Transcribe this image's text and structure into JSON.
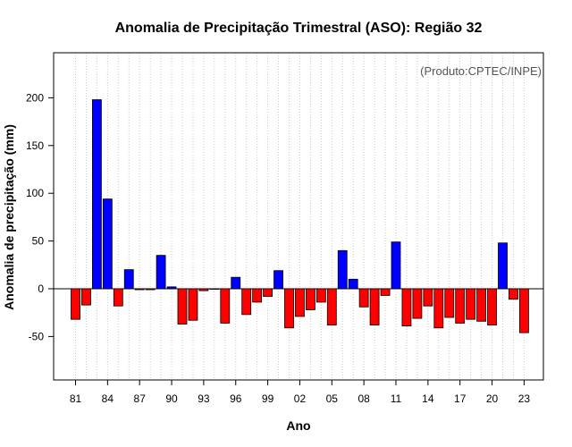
{
  "chart_data": {
    "type": "bar",
    "title": "Anomalia de Precipitação Trimestral (ASO): Região 32",
    "credit": "(Produto:CPTEC/INPE)",
    "xlabel": "Ano",
    "ylabel": "Anomalia de precipitação (mm)",
    "ylim": [
      -95,
      245
    ],
    "yticks": [
      -50,
      0,
      50,
      100,
      150,
      200
    ],
    "xtick_labels": [
      "81",
      "84",
      "87",
      "90",
      "93",
      "96",
      "99",
      "02",
      "05",
      "08",
      "11",
      "14",
      "17",
      "20",
      "23"
    ],
    "years": [
      1981,
      1982,
      1983,
      1984,
      1985,
      1986,
      1987,
      1988,
      1989,
      1990,
      1991,
      1992,
      1993,
      1994,
      1995,
      1996,
      1997,
      1998,
      1999,
      2000,
      2001,
      2002,
      2003,
      2004,
      2005,
      2006,
      2007,
      2008,
      2009,
      2010,
      2011,
      2012,
      2013,
      2014,
      2015,
      2016,
      2017,
      2018,
      2019,
      2020,
      2021,
      2022,
      2023
    ],
    "values": [
      -32,
      -17,
      198,
      94,
      -18,
      20,
      -1,
      -1,
      35,
      2,
      -37,
      -33,
      -2,
      0,
      -36,
      12,
      -27,
      -14,
      -8,
      19,
      -41,
      -29,
      -22,
      -14,
      -38,
      40,
      10,
      -19,
      -38,
      -7,
      49,
      -39,
      -31,
      -18,
      -41,
      -30,
      -36,
      -32,
      -34,
      -38,
      48,
      -11,
      -46
    ],
    "positive_color": "#0000ff",
    "negative_color": "#ff0000",
    "grid": "vertical dotted"
  }
}
